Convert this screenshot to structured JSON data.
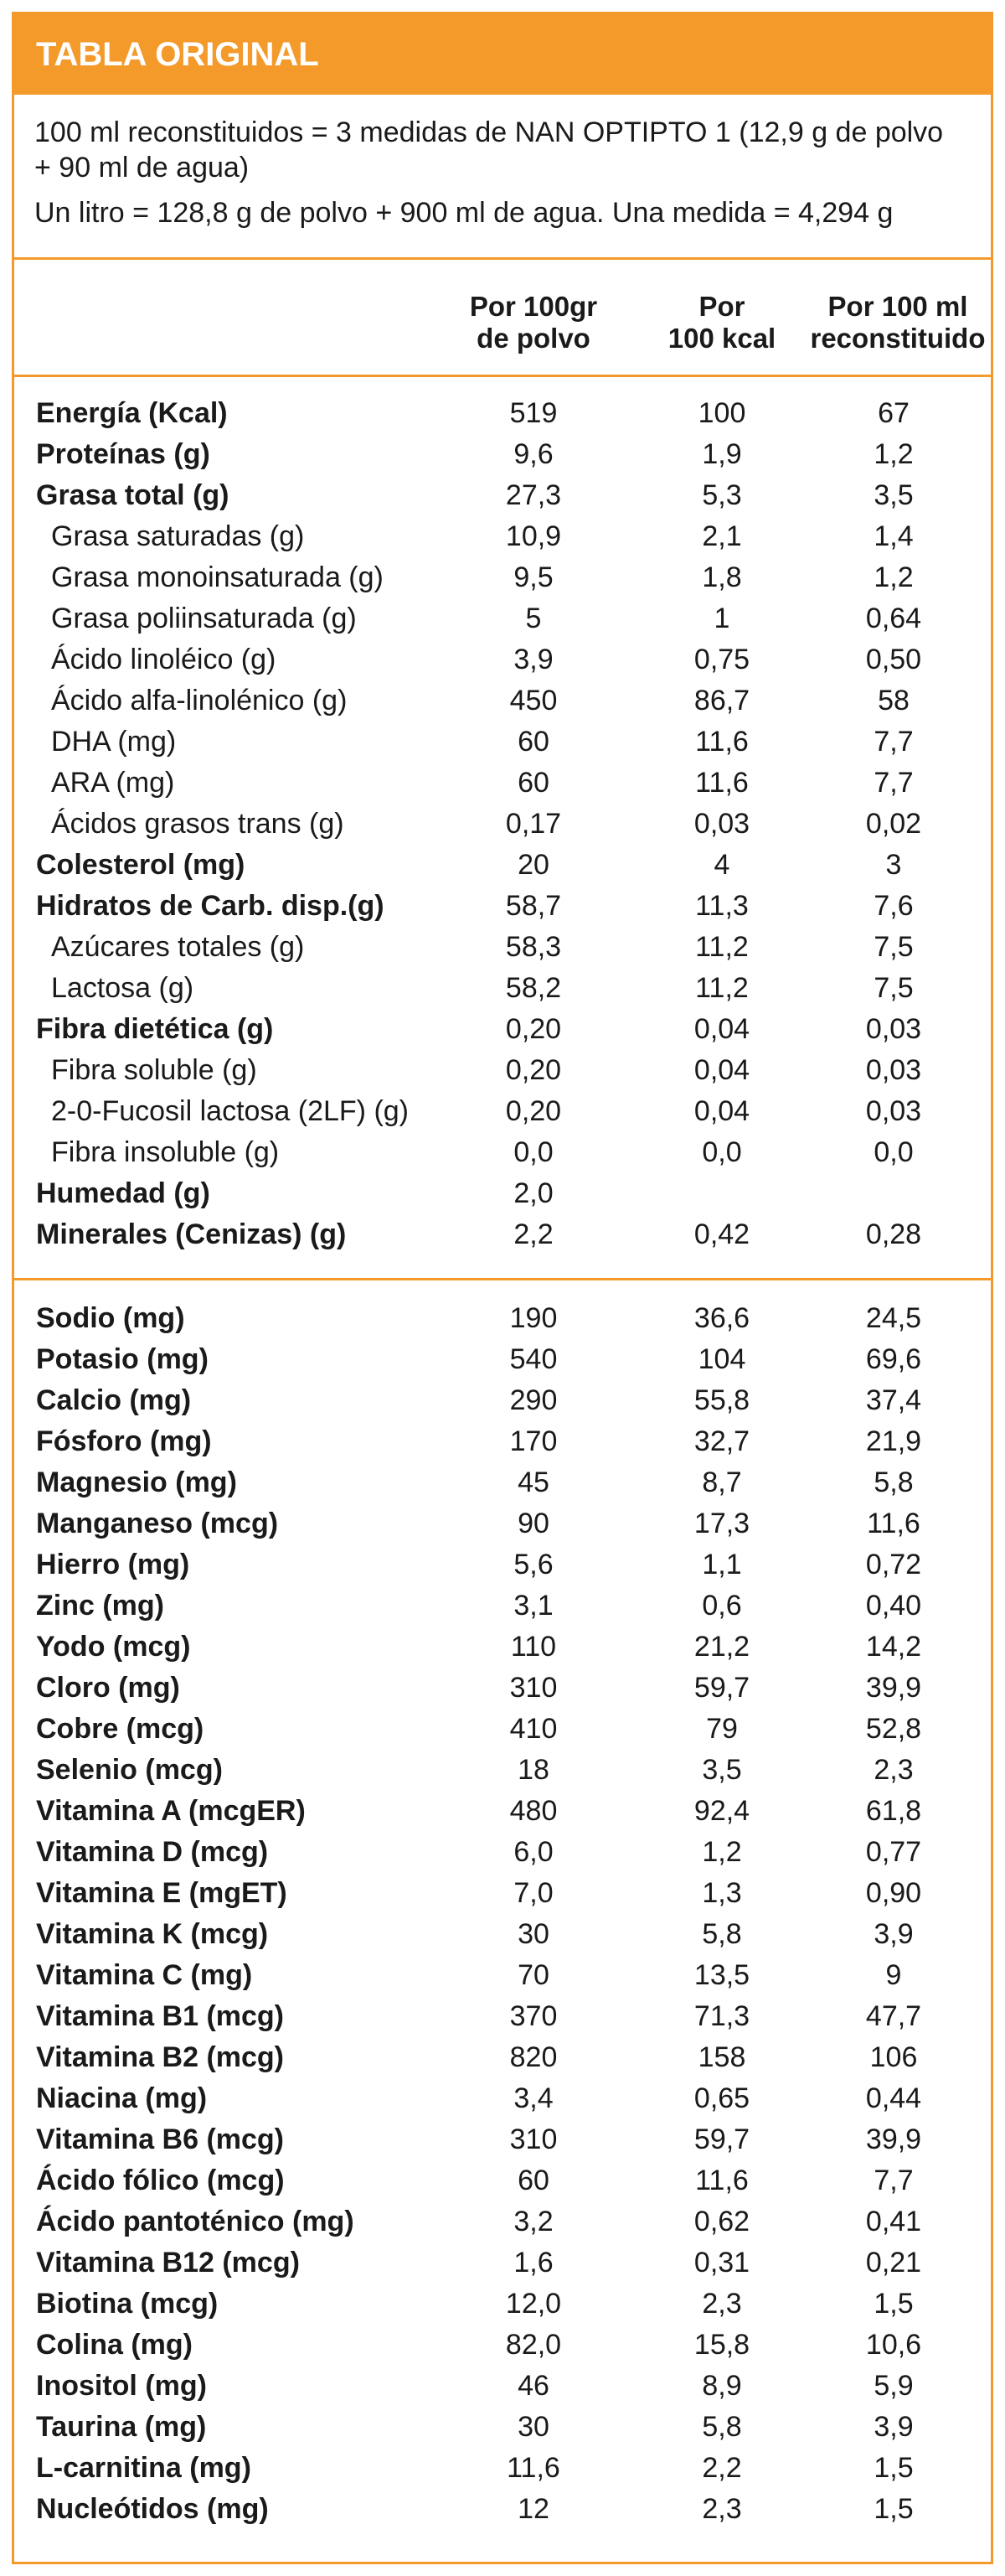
{
  "title": "TABLA ORIGINAL",
  "intro": {
    "line1": "100 ml reconstituidos =  3 medidas de NAN OPTIPTO 1 (12,9 g de polvo + 90 ml de agua)",
    "line2": "Un litro = 128,8 g de polvo + 900 ml de agua. Una medida = 4,294 g"
  },
  "columns": [
    "Por 100gr de polvo",
    "Por 100 kcal",
    "Por 100 ml reconstituido"
  ],
  "column_lines": [
    [
      "Por 100gr",
      "de polvo"
    ],
    [
      "Por",
      "100 kcal"
    ],
    [
      "Por 100 ml",
      "reconstituido"
    ]
  ],
  "sections": [
    {
      "rows": [
        {
          "label": "Energía (Kcal)",
          "bold": true,
          "values": [
            "519",
            "100",
            "67"
          ]
        },
        {
          "label": "Proteínas (g)",
          "bold": true,
          "values": [
            "9,6",
            "1,9",
            "1,2"
          ]
        },
        {
          "label": "Grasa total (g)",
          "bold": true,
          "values": [
            "27,3",
            "5,3",
            "3,5"
          ]
        },
        {
          "label": "Grasa saturadas (g)",
          "bold": false,
          "values": [
            "10,9",
            "2,1",
            "1,4"
          ]
        },
        {
          "label": "Grasa monoinsaturada (g)",
          "bold": false,
          "values": [
            "9,5",
            "1,8",
            "1,2"
          ]
        },
        {
          "label": "Grasa poliinsaturada (g)",
          "bold": false,
          "values": [
            "5",
            "1",
            "0,64"
          ]
        },
        {
          "label": "Ácido linoléico (g)",
          "bold": false,
          "values": [
            "3,9",
            "0,75",
            "0,50"
          ]
        },
        {
          "label": "Ácido alfa-linolénico (g)",
          "bold": false,
          "values": [
            "450",
            "86,7",
            "58"
          ]
        },
        {
          "label": "DHA (mg)",
          "bold": false,
          "values": [
            "60",
            "11,6",
            "7,7"
          ]
        },
        {
          "label": "ARA (mg)",
          "bold": false,
          "values": [
            "60",
            "11,6",
            "7,7"
          ]
        },
        {
          "label": "Ácidos grasos trans (g)",
          "bold": false,
          "values": [
            "0,17",
            "0,03",
            "0,02"
          ]
        },
        {
          "label": "Colesterol (mg)",
          "bold": true,
          "values": [
            "20",
            "4",
            "3"
          ]
        },
        {
          "label": "Hidratos de Carb. disp.(g)",
          "bold": true,
          "values": [
            "58,7",
            "11,3",
            "7,6"
          ]
        },
        {
          "label": "Azúcares totales (g)",
          "bold": false,
          "values": [
            "58,3",
            "11,2",
            "7,5"
          ]
        },
        {
          "label": "Lactosa (g)",
          "bold": false,
          "values": [
            "58,2",
            "11,2",
            "7,5"
          ]
        },
        {
          "label": "Fibra dietética (g)",
          "bold": true,
          "values": [
            "0,20",
            "0,04",
            "0,03"
          ]
        },
        {
          "label": "Fibra soluble (g)",
          "bold": false,
          "values": [
            "0,20",
            "0,04",
            "0,03"
          ]
        },
        {
          "label": "2-0-Fucosil lactosa (2LF) (g)",
          "bold": false,
          "values": [
            "0,20",
            "0,04",
            "0,03"
          ]
        },
        {
          "label": "Fibra insoluble (g)",
          "bold": false,
          "values": [
            "0,0",
            "0,0",
            "0,0"
          ]
        },
        {
          "label": "Humedad (g)",
          "bold": true,
          "values": [
            "2,0",
            "",
            ""
          ]
        },
        {
          "label": "Minerales (Cenizas) (g)",
          "bold": true,
          "values": [
            "2,2",
            "0,42",
            "0,28"
          ]
        }
      ]
    },
    {
      "rows": [
        {
          "label": "Sodio (mg)",
          "bold": true,
          "values": [
            "190",
            "36,6",
            "24,5"
          ]
        },
        {
          "label": "Potasio (mg)",
          "bold": true,
          "values": [
            "540",
            "104",
            "69,6"
          ]
        },
        {
          "label": "Calcio (mg)",
          "bold": true,
          "values": [
            "290",
            "55,8",
            "37,4"
          ]
        },
        {
          "label": "Fósforo (mg)",
          "bold": true,
          "values": [
            "170",
            "32,7",
            "21,9"
          ]
        },
        {
          "label": "Magnesio (mg)",
          "bold": true,
          "values": [
            "45",
            "8,7",
            "5,8"
          ]
        },
        {
          "label": "Manganeso (mcg)",
          "bold": true,
          "values": [
            "90",
            "17,3",
            "11,6"
          ]
        },
        {
          "label": "Hierro (mg)",
          "bold": true,
          "values": [
            "5,6",
            "1,1",
            "0,72"
          ]
        },
        {
          "label": "Zinc (mg)",
          "bold": true,
          "values": [
            "3,1",
            "0,6",
            "0,40"
          ]
        },
        {
          "label": "Yodo (mcg)",
          "bold": true,
          "values": [
            "110",
            "21,2",
            "14,2"
          ]
        },
        {
          "label": "Cloro (mg)",
          "bold": true,
          "values": [
            "310",
            "59,7",
            "39,9"
          ]
        },
        {
          "label": "Cobre (mcg)",
          "bold": true,
          "values": [
            "410",
            "79",
            "52,8"
          ]
        },
        {
          "label": "Selenio (mcg)",
          "bold": true,
          "values": [
            "18",
            "3,5",
            "2,3"
          ]
        },
        {
          "label": "Vitamina A (mcgER)",
          "bold": true,
          "values": [
            "480",
            "92,4",
            "61,8"
          ]
        },
        {
          "label": "Vitamina D (mcg)",
          "bold": true,
          "values": [
            "6,0",
            "1,2",
            "0,77"
          ]
        },
        {
          "label": "Vitamina E (mgET)",
          "bold": true,
          "values": [
            "7,0",
            "1,3",
            "0,90"
          ]
        },
        {
          "label": "Vitamina K (mcg)",
          "bold": true,
          "values": [
            "30",
            "5,8",
            "3,9"
          ]
        },
        {
          "label": "Vitamina C (mg)",
          "bold": true,
          "values": [
            "70",
            "13,5",
            "9"
          ]
        },
        {
          "label": "Vitamina B1 (mcg)",
          "bold": true,
          "values": [
            "370",
            "71,3",
            "47,7"
          ]
        },
        {
          "label": "Vitamina B2 (mcg)",
          "bold": true,
          "values": [
            "820",
            "158",
            "106"
          ]
        },
        {
          "label": "Niacina (mg)",
          "bold": true,
          "values": [
            "3,4",
            "0,65",
            "0,44"
          ]
        },
        {
          "label": "Vitamina B6 (mcg)",
          "bold": true,
          "values": [
            "310",
            "59,7",
            "39,9"
          ]
        },
        {
          "label": "Ácido fólico (mcg)",
          "bold": true,
          "values": [
            "60",
            "11,6",
            "7,7"
          ]
        },
        {
          "label": "Ácido pantoténico (mg)",
          "bold": true,
          "values": [
            "3,2",
            "0,62",
            "0,41"
          ]
        },
        {
          "label": "Vitamina B12 (mcg)",
          "bold": true,
          "values": [
            "1,6",
            "0,31",
            "0,21"
          ]
        },
        {
          "label": "Biotina (mcg)",
          "bold": true,
          "values": [
            "12,0",
            "2,3",
            "1,5"
          ]
        },
        {
          "label": "Colina (mg)",
          "bold": true,
          "values": [
            "82,0",
            "15,8",
            "10,6"
          ]
        },
        {
          "label": "Inositol (mg)",
          "bold": true,
          "values": [
            "46",
            "8,9",
            "5,9"
          ]
        },
        {
          "label": "Taurina (mg)",
          "bold": true,
          "values": [
            "30",
            "5,8",
            "3,9"
          ]
        },
        {
          "label": "L-carnitina (mg)",
          "bold": true,
          "values": [
            "11,6",
            "2,2",
            "1,5"
          ]
        },
        {
          "label": "Nucleótidos (mg)",
          "bold": true,
          "values": [
            "12",
            "2,3",
            "1,5"
          ]
        }
      ]
    }
  ],
  "colors": {
    "accent": "#f39a2b",
    "title_text": "#ffffff",
    "body_text": "#1a1a1a"
  }
}
